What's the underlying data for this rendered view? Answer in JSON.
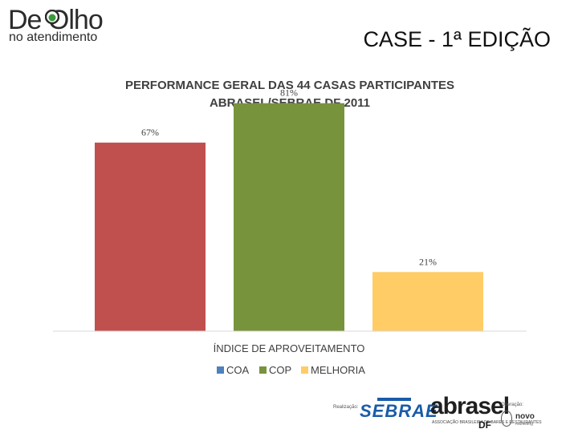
{
  "slide": {
    "logo_main": "De Olho",
    "logo_sub": "no atendimento",
    "title": "CASE - 1ª EDIÇÃO"
  },
  "chart_data": {
    "type": "bar",
    "title_line1": "PERFORMANCE GERAL DAS 44 CASAS PARTICIPANTES",
    "title_line2": "ABRASEL/SEBRAE DF 2011",
    "xlabel": "ÍNDICE DE APROVEITAMENTO",
    "ylabel": "",
    "ylim": [
      0,
      100
    ],
    "grid": false,
    "legend_position": "bottom",
    "series": [
      {
        "name": "COA",
        "value": 67,
        "label": "67%",
        "color": "#c0504d",
        "legend_color": "#4f81bd"
      },
      {
        "name": "COP",
        "value": 81,
        "label": "81%",
        "color": "#77933c",
        "legend_color": "#77933c"
      },
      {
        "name": "MELHORIA",
        "value": 21,
        "label": "21%",
        "color": "#ffcc66",
        "legend_color": "#ffcc66"
      }
    ]
  },
  "footer": {
    "realizacao_label": "Realização:",
    "sebrae": "SEBRAE",
    "abrasel": "abrasel",
    "abrasel_sub": "ASSOCIAÇÃO BRASILEIRA DE BARES E RESTAURANTES",
    "abrasel_df": "DF",
    "operacao_label": "Operação:",
    "novo": "novo",
    "novo_sub": "marketing"
  }
}
